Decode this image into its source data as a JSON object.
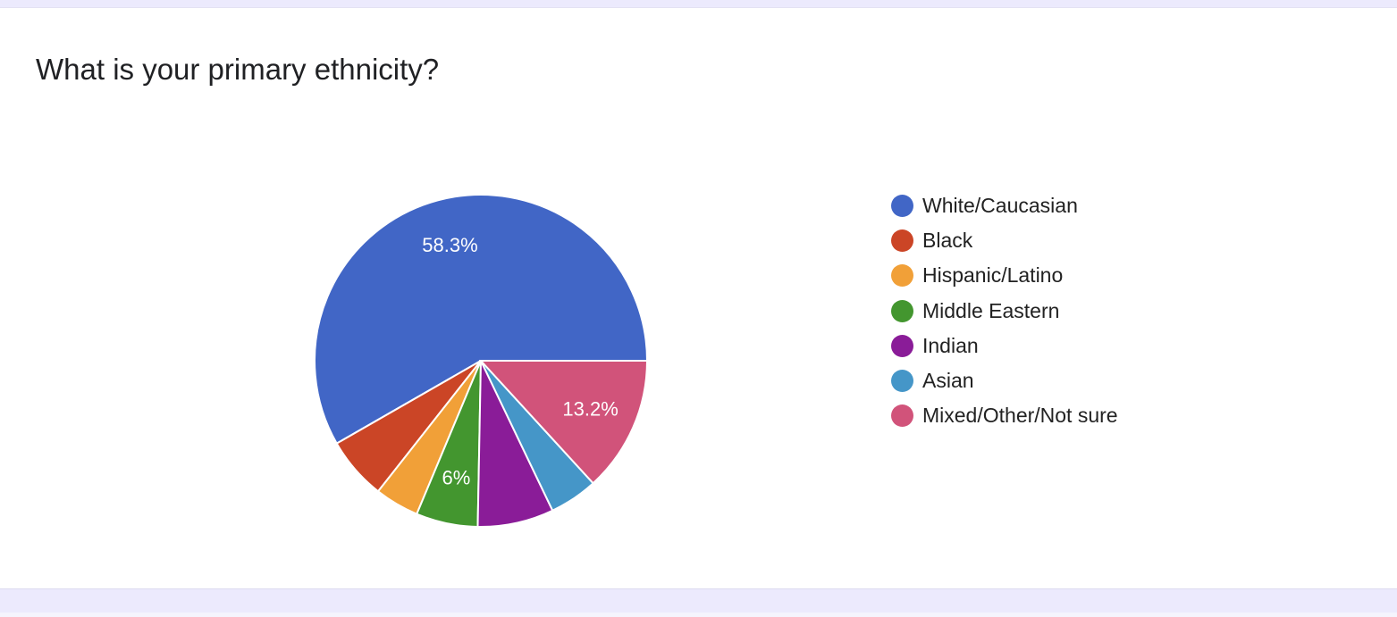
{
  "question": {
    "title": "What is your primary ethnicity?"
  },
  "chart_data": {
    "type": "pie",
    "categories": [
      "White/Caucasian",
      "Black",
      "Hispanic/Latino",
      "Middle Eastern",
      "Indian",
      "Asian",
      "Mixed/Other/Not sure"
    ],
    "values": [
      58.3,
      6.1,
      4.3,
      6.0,
      7.4,
      4.7,
      13.2
    ],
    "value_unit": "%",
    "data_labels": [
      "58.3%",
      "",
      "",
      "6%",
      "",
      "",
      "13.2%"
    ],
    "colors": [
      "#4166c6",
      "#cb4526",
      "#f1a038",
      "#43962f",
      "#8a1c98",
      "#4596c8",
      "#d1537a"
    ],
    "start_angle_deg": 0,
    "direction": "counterclockwise-from-3-oclock",
    "legend_position": "right"
  }
}
